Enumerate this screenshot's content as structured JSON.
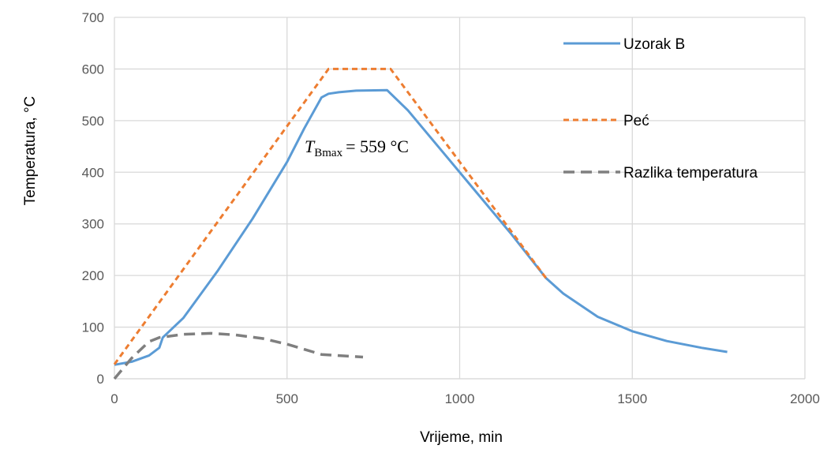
{
  "chart_data": {
    "type": "line",
    "title": "",
    "xlabel": "Vrijeme, min",
    "ylabel": "Temperatura, °C",
    "xlim": [
      0,
      2000
    ],
    "ylim": [
      0,
      700
    ],
    "xticks": [
      0,
      500,
      1000,
      1500,
      2000
    ],
    "yticks": [
      0,
      100,
      200,
      300,
      400,
      500,
      600,
      700
    ],
    "grid": true,
    "legend_position": "right",
    "annotation": {
      "symbol": "T",
      "subscript": "Bmax",
      "text": "= 559 °C"
    },
    "series": [
      {
        "name": "Uzorak B",
        "color": "#5B9BD5",
        "style": "solid",
        "x": [
          0,
          50,
          100,
          130,
          140,
          200,
          300,
          400,
          500,
          550,
          600,
          620,
          650,
          700,
          790,
          850,
          950,
          1050,
          1150,
          1250,
          1300,
          1400,
          1500,
          1600,
          1700,
          1775
        ],
        "y": [
          27,
          33,
          45,
          60,
          80,
          118,
          210,
          310,
          420,
          485,
          545,
          552,
          555,
          558,
          559,
          520,
          440,
          360,
          280,
          195,
          165,
          120,
          92,
          73,
          60,
          52
        ]
      },
      {
        "name": "Peć",
        "color": "#ED7D31",
        "style": "dash",
        "x": [
          0,
          620,
          800,
          1250
        ],
        "y": [
          28,
          600,
          600,
          195
        ]
      },
      {
        "name": "Razlika temperatura",
        "color": "#7F7F7F",
        "style": "longdash",
        "x": [
          0,
          50,
          100,
          130,
          200,
          280,
          350,
          430,
          500,
          550,
          600,
          650,
          720
        ],
        "y": [
          0,
          40,
          72,
          80,
          86,
          88,
          85,
          78,
          67,
          57,
          47,
          45,
          42
        ]
      }
    ]
  }
}
